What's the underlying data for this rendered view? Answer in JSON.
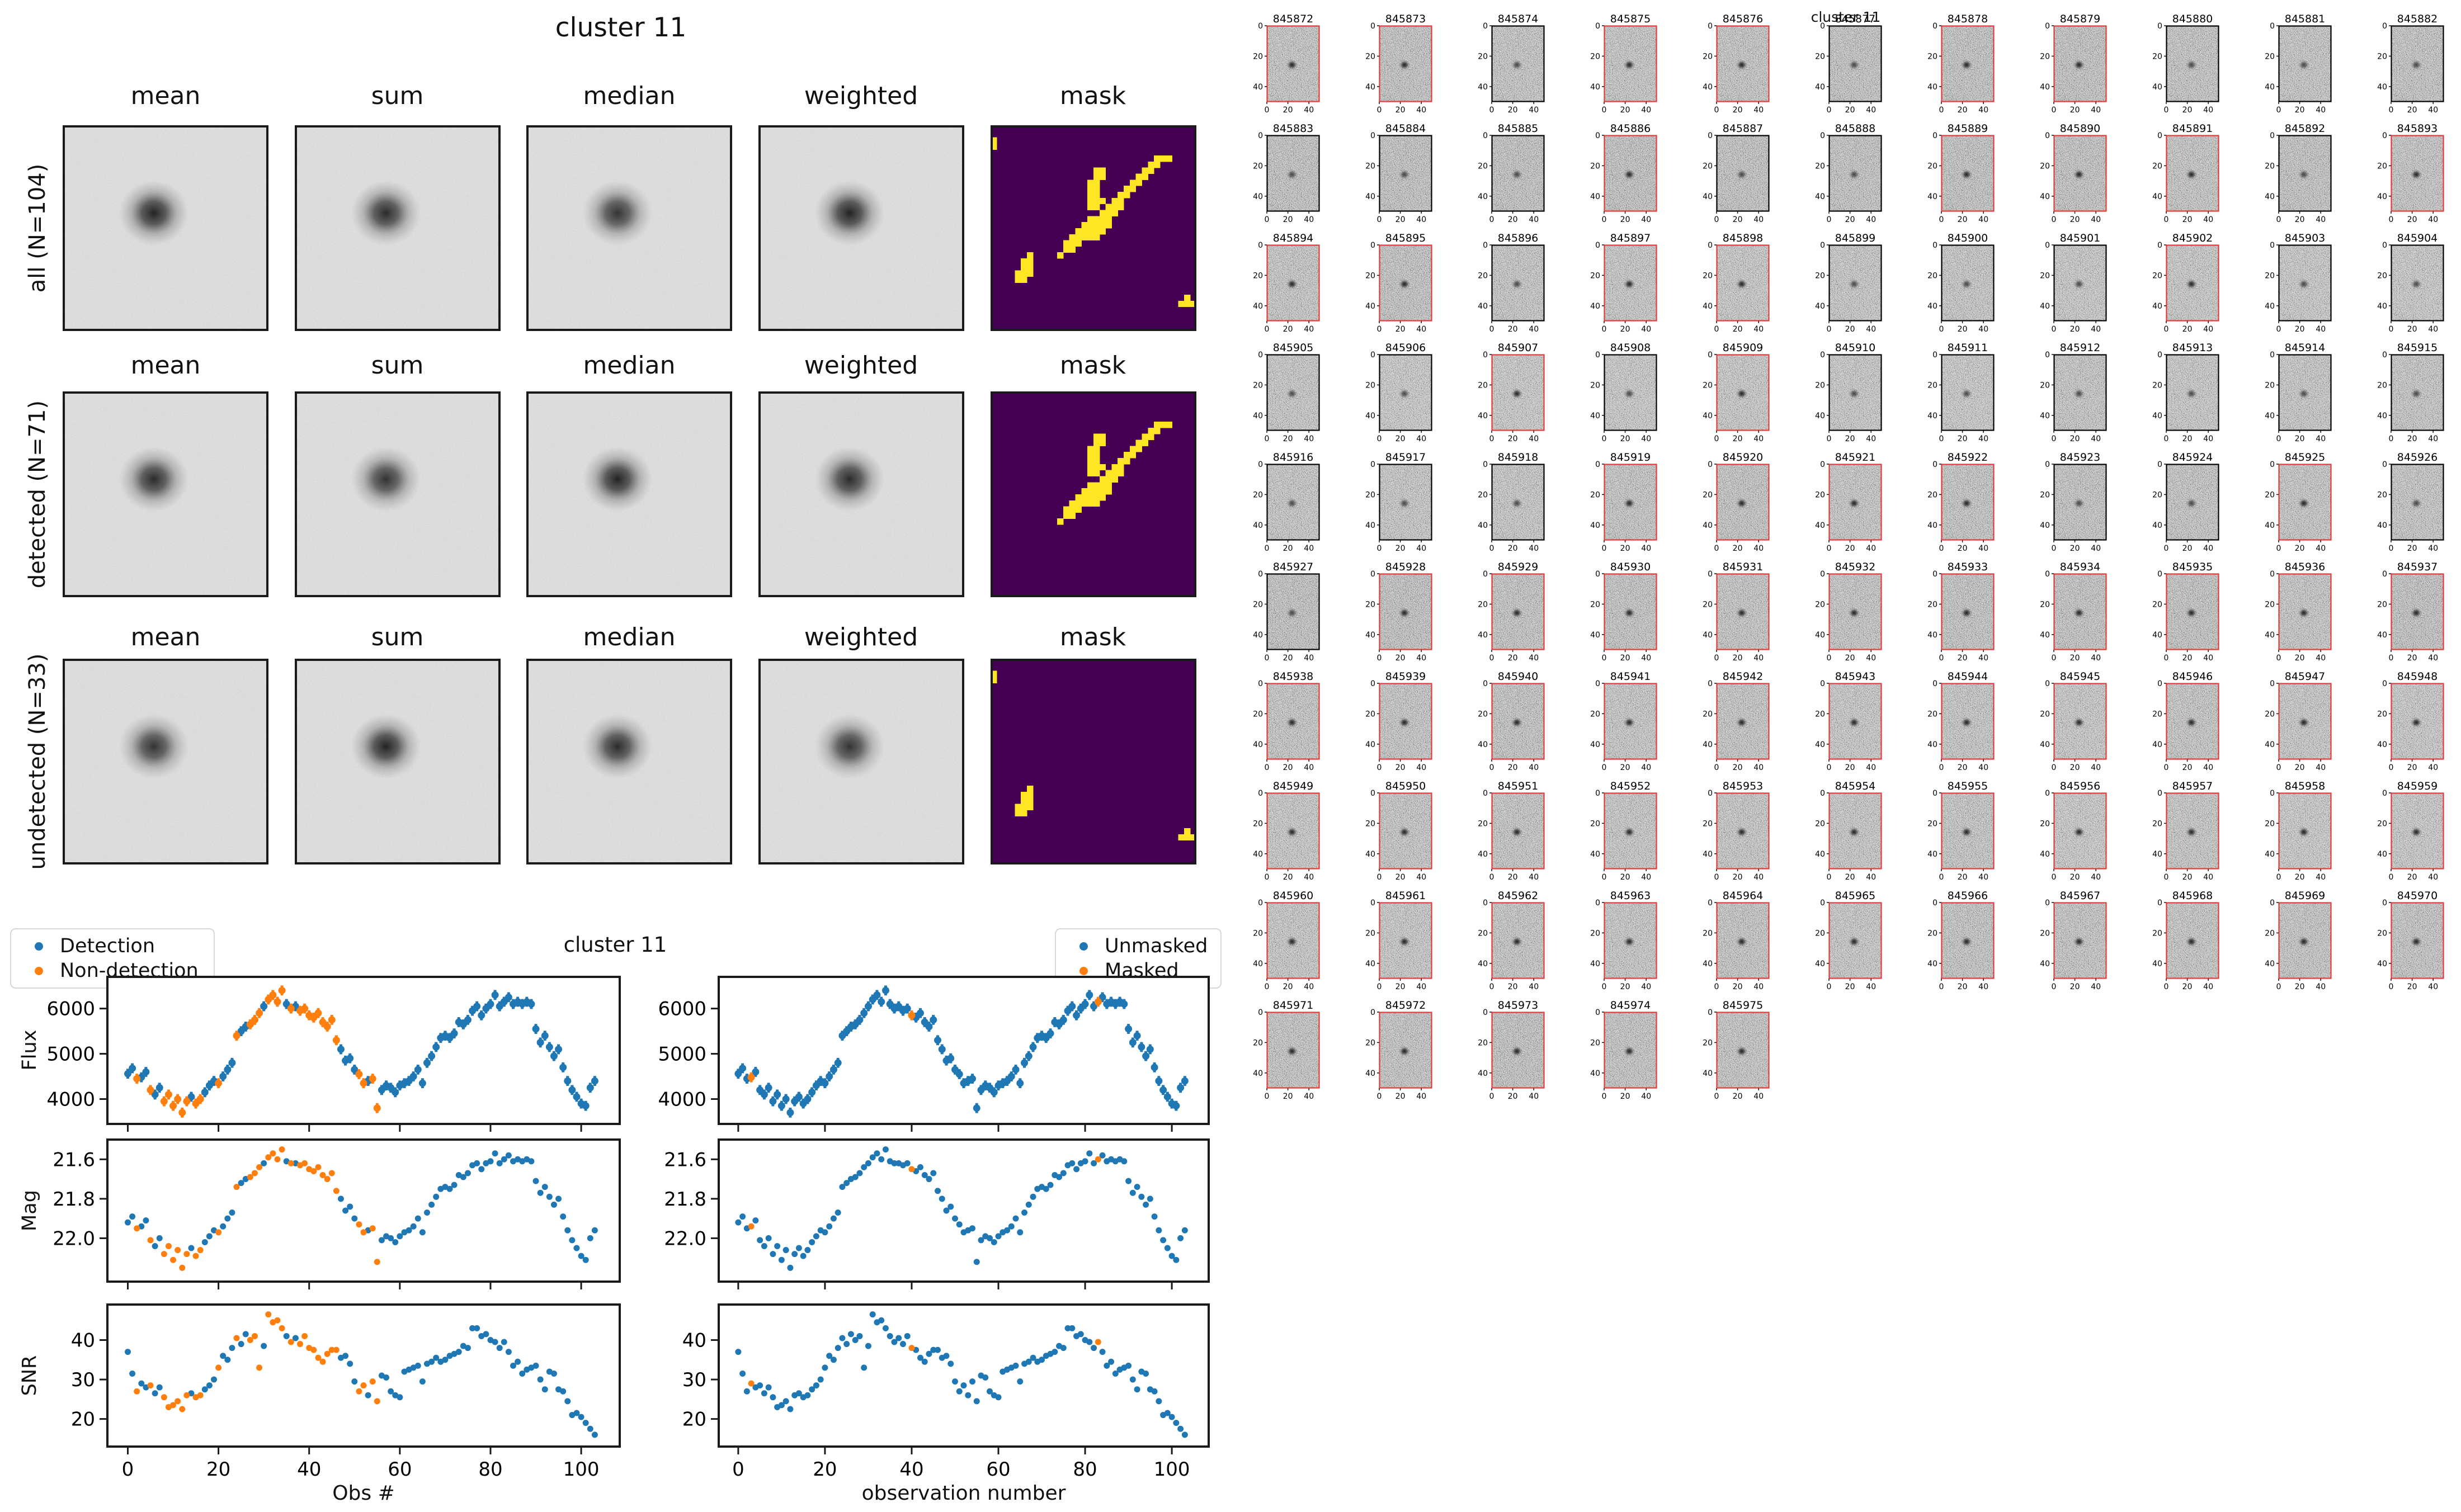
{
  "colors": {
    "detection": "#1f77b4",
    "non_detection": "#ff7f0e",
    "mask_bg": "#440154",
    "mask_fg": "#fde725",
    "stamp_border_detected": "#e43b3b",
    "stamp_border_undetected": "#000000",
    "cutout_bg": "#ebebeb",
    "spine": "#1a1a1a"
  },
  "left_figure": {
    "title": "cluster 11",
    "columns": [
      "mean",
      "sum",
      "median",
      "weighted",
      "mask"
    ],
    "rows": [
      {
        "label": "all (N=104)",
        "mask_variant": "streak_and_spots"
      },
      {
        "label": "detected (N=71)",
        "mask_variant": "streak"
      },
      {
        "label": "undetected (N=33)",
        "mask_variant": "spots"
      }
    ]
  },
  "chart_data": {
    "type": "scatter",
    "title": "cluster 11",
    "x_ticks": [
      0,
      20,
      40,
      60,
      80,
      100
    ],
    "flux_err": 110,
    "panels": [
      {
        "ylabel": "Flux",
        "yticks": [
          4000,
          5000,
          6000
        ],
        "ylim": [
          3450,
          6700
        ],
        "errorbars": true
      },
      {
        "ylabel": "Mag",
        "yticks": [
          21.6,
          21.8,
          22.0
        ],
        "ylim": [
          22.22,
          21.5
        ],
        "inverted": true,
        "decimals": 1
      },
      {
        "ylabel": "SNR",
        "yticks": [
          20,
          30,
          40
        ],
        "ylim": [
          13,
          49
        ]
      }
    ],
    "columns": [
      {
        "legend": [
          "Detection",
          "Non-detection"
        ],
        "split_by": "detection",
        "xlabel": "Obs #"
      },
      {
        "legend": [
          "Unmasked",
          "Masked"
        ],
        "split_by": "mask",
        "xlabel": "observation number"
      }
    ],
    "flux": [
      4560,
      4680,
      4450,
      4480,
      4600,
      4200,
      4100,
      4250,
      3950,
      4100,
      3850,
      4000,
      3700,
      3950,
      4050,
      3900,
      4000,
      4150,
      4300,
      4400,
      4350,
      4500,
      4650,
      4800,
      5400,
      5500,
      5600,
      5650,
      5750,
      5900,
      6050,
      6200,
      6300,
      6150,
      6400,
      6100,
      6000,
      6050,
      5950,
      6000,
      5850,
      5800,
      5900,
      5700,
      5600,
      5750,
      5300,
      5100,
      4850,
      4900,
      4650,
      4550,
      4350,
      4400,
      4450,
      3800,
      4200,
      4300,
      4250,
      4150,
      4300,
      4350,
      4400,
      4500,
      4650,
      4350,
      4800,
      4950,
      5150,
      5350,
      5400,
      5350,
      5450,
      5700,
      5650,
      5750,
      5950,
      6050,
      5850,
      6000,
      6100,
      6300,
      6050,
      6150,
      6250,
      6100,
      6150,
      6100,
      6150,
      6100,
      5550,
      5250,
      5400,
      5150,
      4950,
      5100,
      4700,
      4400,
      4200,
      4050,
      3900,
      3850,
      4250,
      4400
    ],
    "mag": [
      21.92,
      21.89,
      21.95,
      21.94,
      21.91,
      22.01,
      22.04,
      22.0,
      22.08,
      22.04,
      22.11,
      22.06,
      22.15,
      22.08,
      22.05,
      22.09,
      22.06,
      22.02,
      21.99,
      21.96,
      21.97,
      21.94,
      21.9,
      21.87,
      21.74,
      21.72,
      21.7,
      21.69,
      21.67,
      21.64,
      21.62,
      21.59,
      21.57,
      21.6,
      21.55,
      21.61,
      21.62,
      21.62,
      21.63,
      21.62,
      21.65,
      21.66,
      21.64,
      21.68,
      21.7,
      21.67,
      21.76,
      21.8,
      21.86,
      21.84,
      21.9,
      21.93,
      21.97,
      21.96,
      21.95,
      22.12,
      22.01,
      21.99,
      22.0,
      22.02,
      21.99,
      21.97,
      21.96,
      21.94,
      21.9,
      21.97,
      21.87,
      21.83,
      21.79,
      21.75,
      21.74,
      21.75,
      21.73,
      21.68,
      21.69,
      21.67,
      21.63,
      21.62,
      21.65,
      21.62,
      21.61,
      21.57,
      21.62,
      21.6,
      21.58,
      21.61,
      21.6,
      21.61,
      21.6,
      21.61,
      21.71,
      21.77,
      21.74,
      21.79,
      21.83,
      21.8,
      21.89,
      21.96,
      22.01,
      22.05,
      22.09,
      22.11,
      22.0,
      21.96
    ],
    "snr": [
      37.0,
      31.5,
      27.0,
      29.0,
      28.0,
      28.5,
      26.5,
      28.0,
      25.5,
      23.0,
      23.5,
      24.5,
      22.5,
      26.0,
      26.5,
      25.5,
      26.0,
      27.5,
      28.5,
      30.0,
      33.0,
      36.0,
      35.0,
      38.0,
      40.5,
      39.0,
      41.5,
      40.0,
      41.0,
      33.0,
      38.5,
      46.5,
      44.5,
      45.0,
      43.0,
      41.0,
      39.5,
      40.5,
      39.0,
      41.0,
      38.0,
      37.5,
      35.5,
      34.5,
      36.5,
      37.5,
      37.5,
      35.5,
      36.0,
      34.0,
      29.5,
      27.0,
      28.5,
      26.0,
      29.5,
      24.5,
      31.0,
      30.5,
      27.0,
      26.0,
      25.5,
      32.0,
      32.5,
      33.0,
      33.5,
      29.5,
      34.0,
      34.5,
      35.5,
      34.5,
      35.0,
      36.0,
      36.5,
      37.0,
      38.5,
      38.0,
      43.0,
      43.0,
      41.0,
      41.5,
      40.0,
      39.5,
      38.0,
      39.5,
      37.0,
      33.5,
      34.5,
      31.5,
      32.5,
      33.0,
      33.5,
      30.0,
      27.5,
      32.0,
      31.5,
      27.5,
      27.0,
      24.5,
      21.0,
      21.5,
      20.5,
      19.0,
      17.5,
      16.0
    ],
    "undetected_indices": [
      2,
      5,
      8,
      9,
      10,
      11,
      12,
      13,
      15,
      16,
      20,
      24,
      27,
      28,
      29,
      31,
      32,
      33,
      34,
      36,
      38,
      39,
      40,
      41,
      42,
      43,
      44,
      45,
      46,
      51,
      52,
      54,
      55
    ],
    "masked_indices": [
      3,
      40,
      83
    ]
  },
  "stamps": {
    "suptitle": "cluster 11",
    "x_tick_labels": [
      "0",
      "20",
      "40"
    ],
    "y_tick_labels": [
      "0",
      "20",
      "40"
    ],
    "ids": [
      "845872",
      "845873",
      "845874",
      "845875",
      "845876",
      "845877",
      "845878",
      "845879",
      "845880",
      "845881",
      "845882",
      "845883",
      "845884",
      "845885",
      "845886",
      "845887",
      "845888",
      "845889",
      "845890",
      "845891",
      "845892",
      "845893",
      "845894",
      "845895",
      "845896",
      "845897",
      "845898",
      "845899",
      "845900",
      "845901",
      "845902",
      "845903",
      "845904",
      "845905",
      "845906",
      "845907",
      "845908",
      "845909",
      "845910",
      "845911",
      "845912",
      "845913",
      "845914",
      "845915",
      "845916",
      "845917",
      "845918",
      "845919",
      "845920",
      "845921",
      "845922",
      "845923",
      "845924",
      "845925",
      "845926",
      "845927",
      "845928",
      "845929",
      "845930",
      "845931",
      "845932",
      "845933",
      "845934",
      "845935",
      "845936",
      "845937",
      "845938",
      "845939",
      "845940",
      "845941",
      "845942",
      "845943",
      "845944",
      "845945",
      "845946",
      "845947",
      "845948",
      "845949",
      "845950",
      "845951",
      "845952",
      "845953",
      "845954",
      "845955",
      "845956",
      "845957",
      "845958",
      "845959",
      "845960",
      "845961",
      "845962",
      "845963",
      "845964",
      "845965",
      "845966",
      "845967",
      "845968",
      "845969",
      "845970",
      "845971",
      "845972",
      "845973",
      "845974",
      "845975"
    ]
  }
}
